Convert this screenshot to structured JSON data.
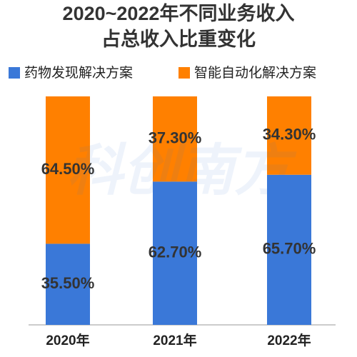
{
  "chart_data": {
    "type": "stacked_bar",
    "title": [
      "2020~2022年不同业务收入",
      "占总收入比重变化"
    ],
    "watermark": "科创南方",
    "categories": [
      "2020年",
      "2021年",
      "2022年"
    ],
    "ylim": [
      0,
      100
    ],
    "series": [
      {
        "name": "药物发现解决方案",
        "color": "#3a78d8",
        "values": [
          35.5,
          62.7,
          65.7
        ],
        "value_labels": [
          "35.50%",
          "62.70%",
          "65.70%"
        ]
      },
      {
        "name": "智能自动化解决方案",
        "color": "#ff8000",
        "values": [
          64.5,
          37.3,
          34.3
        ],
        "value_labels": [
          "64.50%",
          "37.30%",
          "34.30%"
        ]
      }
    ]
  }
}
